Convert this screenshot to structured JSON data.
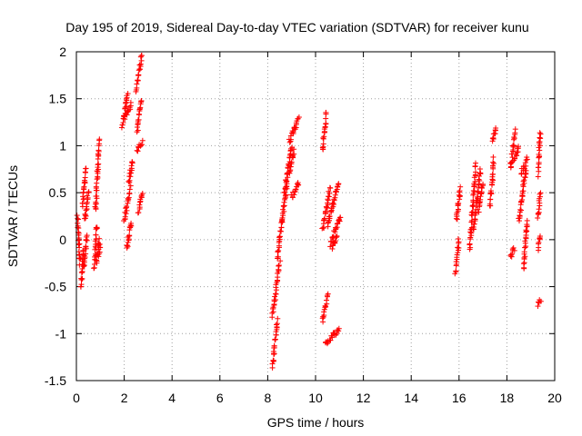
{
  "chart_data": {
    "type": "scatter",
    "title": "Day 195 of 2019, Sidereal Day-to-day VTEC variation (SDTVAR) for receiver kunu",
    "xlabel": "GPS time / hours",
    "ylabel": "SDTVAR / TECUs",
    "xlim": [
      0,
      20
    ],
    "ylim": [
      -1.5,
      2
    ],
    "xticks": [
      0,
      2,
      4,
      6,
      8,
      10,
      12,
      14,
      16,
      18,
      20
    ],
    "yticks": [
      -1.5,
      -1,
      -0.5,
      0,
      0.5,
      1,
      1.5,
      2
    ],
    "xtick_labels": [
      "0",
      "2",
      "4",
      "6",
      "8",
      "10",
      "12",
      "14",
      "16",
      "18",
      "20"
    ],
    "ytick_labels": [
      "-1.5",
      "-1",
      "-0.5",
      "0",
      "0.5",
      "1",
      "1.5",
      "2"
    ],
    "grid": true,
    "marker": "+",
    "marker_color": "#ff0000",
    "series": [
      {
        "name": "SDTVAR",
        "segments": [
          {
            "x": [
              0.05,
              0.15
            ],
            "y": [
              0.25,
              -0.25
            ]
          },
          {
            "x": [
              0.2,
              0.3
            ],
            "y": [
              -0.5,
              -0.1
            ]
          },
          {
            "x": [
              0.3,
              0.45
            ],
            "y": [
              -0.3,
              0.05
            ]
          },
          {
            "x": [
              0.25,
              0.4
            ],
            "y": [
              0.35,
              0.75
            ]
          },
          {
            "x": [
              0.35,
              0.5
            ],
            "y": [
              0.2,
              0.5
            ]
          },
          {
            "x": [
              0.75,
              0.85
            ],
            "y": [
              -0.3,
              0.15
            ]
          },
          {
            "x": [
              0.8,
              0.95
            ],
            "y": [
              0.3,
              1.05
            ]
          },
          {
            "x": [
              0.85,
              0.95
            ],
            "y": [
              -0.25,
              0.0
            ]
          },
          {
            "x": [
              0.95,
              1.0
            ],
            "y": [
              -0.15,
              -0.05
            ]
          },
          {
            "x": [
              1.9,
              2.15
            ],
            "y": [
              1.2,
              1.55
            ]
          },
          {
            "x": [
              2.0,
              2.3
            ],
            "y": [
              1.3,
              1.45
            ]
          },
          {
            "x": [
              2.0,
              2.25
            ],
            "y": [
              0.2,
              0.55
            ]
          },
          {
            "x": [
              2.1,
              2.3
            ],
            "y": [
              -0.1,
              0.2
            ]
          },
          {
            "x": [
              2.2,
              2.35
            ],
            "y": [
              0.6,
              0.85
            ]
          },
          {
            "x": [
              2.5,
              2.75
            ],
            "y": [
              1.6,
              1.98
            ]
          },
          {
            "x": [
              2.55,
              2.7
            ],
            "y": [
              1.15,
              1.5
            ]
          },
          {
            "x": [
              2.55,
              2.75
            ],
            "y": [
              0.95,
              1.05
            ]
          },
          {
            "x": [
              2.6,
              2.75
            ],
            "y": [
              0.3,
              0.5
            ]
          },
          {
            "x": [
              8.2,
              8.4
            ],
            "y": [
              -1.35,
              -0.85
            ]
          },
          {
            "x": [
              8.2,
              8.5
            ],
            "y": [
              -0.8,
              -0.25
            ]
          },
          {
            "x": [
              8.4,
              8.8
            ],
            "y": [
              -0.2,
              0.6
            ]
          },
          {
            "x": [
              8.7,
              9.0
            ],
            "y": [
              0.5,
              1.0
            ]
          },
          {
            "x": [
              8.9,
              9.3
            ],
            "y": [
              1.05,
              1.3
            ]
          },
          {
            "x": [
              8.9,
              9.1
            ],
            "y": [
              0.7,
              0.95
            ]
          },
          {
            "x": [
              9.0,
              9.3
            ],
            "y": [
              0.45,
              0.6
            ]
          },
          {
            "x": [
              10.3,
              10.45
            ],
            "y": [
              0.95,
              1.35
            ]
          },
          {
            "x": [
              10.3,
              10.6
            ],
            "y": [
              0.1,
              0.55
            ]
          },
          {
            "x": [
              10.3,
              10.5
            ],
            "y": [
              -0.85,
              -0.6
            ]
          },
          {
            "x": [
              10.4,
              11.0
            ],
            "y": [
              -1.1,
              -0.95
            ]
          },
          {
            "x": [
              10.5,
              10.95
            ],
            "y": [
              0.15,
              0.6
            ]
          },
          {
            "x": [
              10.6,
              11.05
            ],
            "y": [
              -0.05,
              0.25
            ]
          },
          {
            "x": [
              10.7,
              10.9
            ],
            "y": [
              -0.1,
              0.05
            ]
          },
          {
            "x": [
              15.85,
              16.0
            ],
            "y": [
              -0.35,
              0.0
            ]
          },
          {
            "x": [
              15.9,
              16.05
            ],
            "y": [
              0.2,
              0.55
            ]
          },
          {
            "x": [
              16.45,
              16.7
            ],
            "y": [
              -0.1,
              0.8
            ]
          },
          {
            "x": [
              16.6,
              16.9
            ],
            "y": [
              0.1,
              0.75
            ]
          },
          {
            "x": [
              16.8,
              17.0
            ],
            "y": [
              0.3,
              0.6
            ]
          },
          {
            "x": [
              17.3,
              17.45
            ],
            "y": [
              0.35,
              0.85
            ]
          },
          {
            "x": [
              17.4,
              17.55
            ],
            "y": [
              1.05,
              1.2
            ]
          },
          {
            "x": [
              18.15,
              18.35
            ],
            "y": [
              0.75,
              1.15
            ]
          },
          {
            "x": [
              18.15,
              18.3
            ],
            "y": [
              -0.2,
              -0.1
            ]
          },
          {
            "x": [
              18.3,
              18.5
            ],
            "y": [
              0.85,
              1.0
            ]
          },
          {
            "x": [
              18.5,
              18.8
            ],
            "y": [
              0.2,
              0.75
            ]
          },
          {
            "x": [
              18.6,
              18.85
            ],
            "y": [
              0.7,
              0.85
            ]
          },
          {
            "x": [
              18.7,
              18.85
            ],
            "y": [
              -0.3,
              0.2
            ]
          },
          {
            "x": [
              19.3,
              19.4
            ],
            "y": [
              0.7,
              1.15
            ]
          },
          {
            "x": [
              19.3,
              19.4
            ],
            "y": [
              0.25,
              0.5
            ]
          },
          {
            "x": [
              19.3,
              19.4
            ],
            "y": [
              -0.1,
              0.05
            ]
          },
          {
            "x": [
              19.3,
              19.4
            ],
            "y": [
              -0.7,
              -0.65
            ]
          }
        ]
      }
    ]
  }
}
